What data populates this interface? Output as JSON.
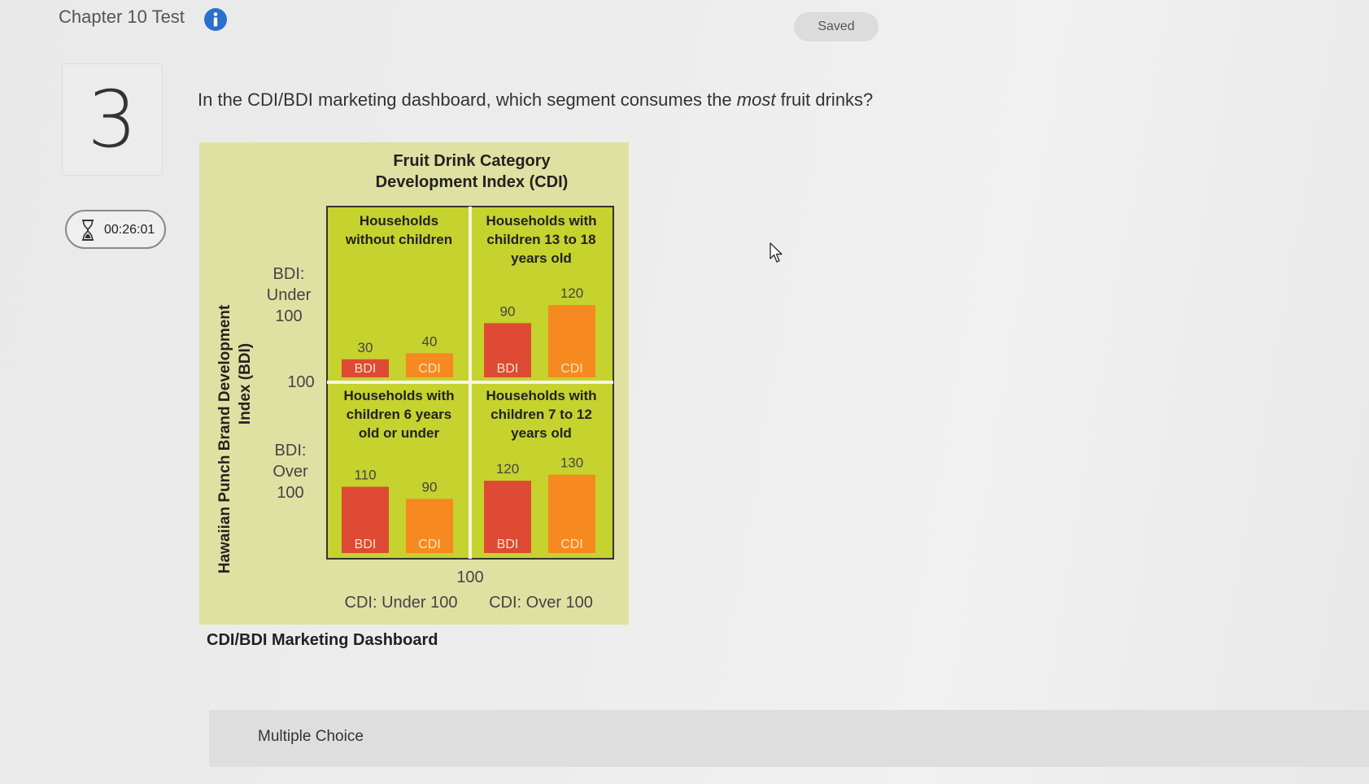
{
  "header": {
    "title": "Chapter 10 Test",
    "saved_label": "Saved"
  },
  "question": {
    "number": "3",
    "timer": "00:26:01",
    "text_before": "In the CDI/BDI marketing dashboard, which segment consumes the ",
    "text_emphasis": "most",
    "text_after": " fruit drinks?"
  },
  "figure": {
    "title_line1": "Fruit Drink Category",
    "title_line2": "Development Index (CDI)",
    "y_axis_line1": "Hawaiian Punch Brand Development",
    "y_axis_line2": "Index (BDI)",
    "bdi_under": [
      "BDI:",
      "Under",
      "100"
    ],
    "bdi_mid": "100",
    "bdi_over": [
      "BDI:",
      "Over",
      "100"
    ],
    "cdi_mid": "100",
    "cdi_under": "CDI: Under 100",
    "cdi_over": "CDI: Over 100",
    "bdi_bar_label": "BDI",
    "cdi_bar_label": "CDI",
    "caption": "CDI/BDI Marketing Dashboard",
    "colors": {
      "background": "#dfe1a2",
      "quadrant": "#c6d22e",
      "bdi": "#de4a34",
      "cdi": "#f6891f"
    }
  },
  "chart_data": {
    "type": "bar",
    "title": "Fruit Drink Category Development Index (CDI)",
    "ylabel": "Hawaiian Punch Brand Development Index (BDI)",
    "quadrants": [
      {
        "name": [
          "Households",
          "without children"
        ],
        "position": "top-left",
        "bdi": 30,
        "cdi": 40
      },
      {
        "name": [
          "Households with",
          "children 13 to 18",
          "years old"
        ],
        "position": "top-right",
        "bdi": 90,
        "cdi": 120
      },
      {
        "name": [
          "Households with",
          "children 6 years",
          "old or under"
        ],
        "position": "bottom-left",
        "bdi": 110,
        "cdi": 90
      },
      {
        "name": [
          "Households with",
          "children 7 to 12",
          "years old"
        ],
        "position": "bottom-right",
        "bdi": 120,
        "cdi": 130
      }
    ]
  },
  "answer_area": {
    "label": "Multiple Choice"
  }
}
